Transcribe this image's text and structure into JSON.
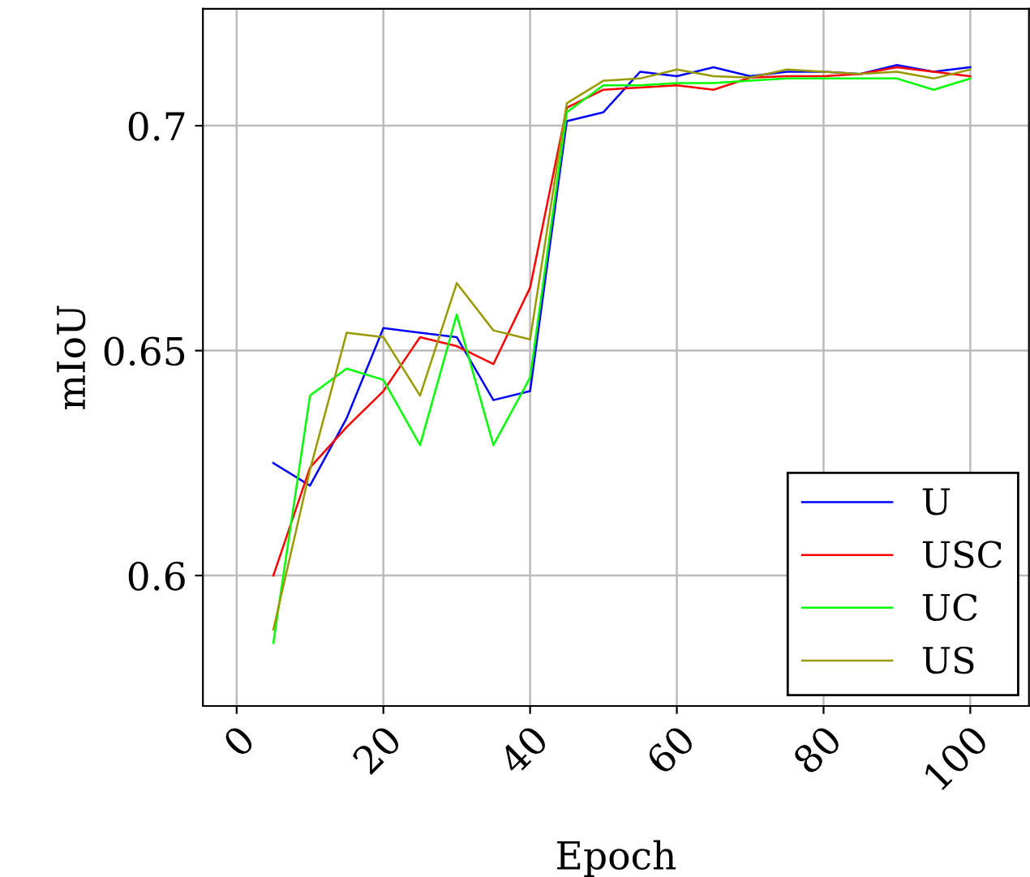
{
  "chart_data": {
    "type": "line",
    "xlabel": "Epoch",
    "ylabel": "mIoU",
    "x": [
      5,
      10,
      15,
      20,
      25,
      30,
      35,
      40,
      45,
      50,
      55,
      60,
      65,
      70,
      75,
      80,
      85,
      90,
      95,
      100
    ],
    "series": [
      {
        "name": "U",
        "color": "#0000ff",
        "values": [
          0.625,
          0.62,
          0.635,
          0.655,
          0.654,
          0.653,
          0.639,
          0.641,
          0.701,
          0.703,
          0.712,
          0.711,
          0.713,
          0.711,
          0.712,
          0.712,
          0.7115,
          0.7135,
          0.712,
          0.713
        ]
      },
      {
        "name": "USC",
        "color": "#ff0000",
        "values": [
          0.6,
          0.624,
          0.633,
          0.641,
          0.653,
          0.651,
          0.647,
          0.664,
          0.704,
          0.708,
          0.7085,
          0.709,
          0.708,
          0.7107,
          0.711,
          0.711,
          0.7115,
          0.713,
          0.712,
          0.711
        ]
      },
      {
        "name": "UC",
        "color": "#00ff00",
        "values": [
          0.585,
          0.64,
          0.646,
          0.6435,
          0.629,
          0.658,
          0.629,
          0.644,
          0.703,
          0.709,
          0.709,
          0.7095,
          0.7095,
          0.71,
          0.7105,
          0.7105,
          0.7105,
          0.7105,
          0.708,
          0.7105
        ]
      },
      {
        "name": "US",
        "color": "#999900",
        "values": [
          0.588,
          0.6235,
          0.654,
          0.653,
          0.64,
          0.665,
          0.6545,
          0.6525,
          0.705,
          0.71,
          0.7105,
          0.7125,
          0.711,
          0.7107,
          0.7125,
          0.712,
          0.7115,
          0.712,
          0.7105,
          0.7125
        ]
      }
    ],
    "xlim": [
      -4.6,
      108
    ],
    "ylim": [
      0.571,
      0.726
    ],
    "xticks": [
      0,
      20,
      40,
      60,
      80,
      100
    ],
    "yticks": [
      0.6,
      0.65,
      0.7
    ],
    "grid": true,
    "legend": "bottom right",
    "marker": "none",
    "line_style": "solid"
  }
}
